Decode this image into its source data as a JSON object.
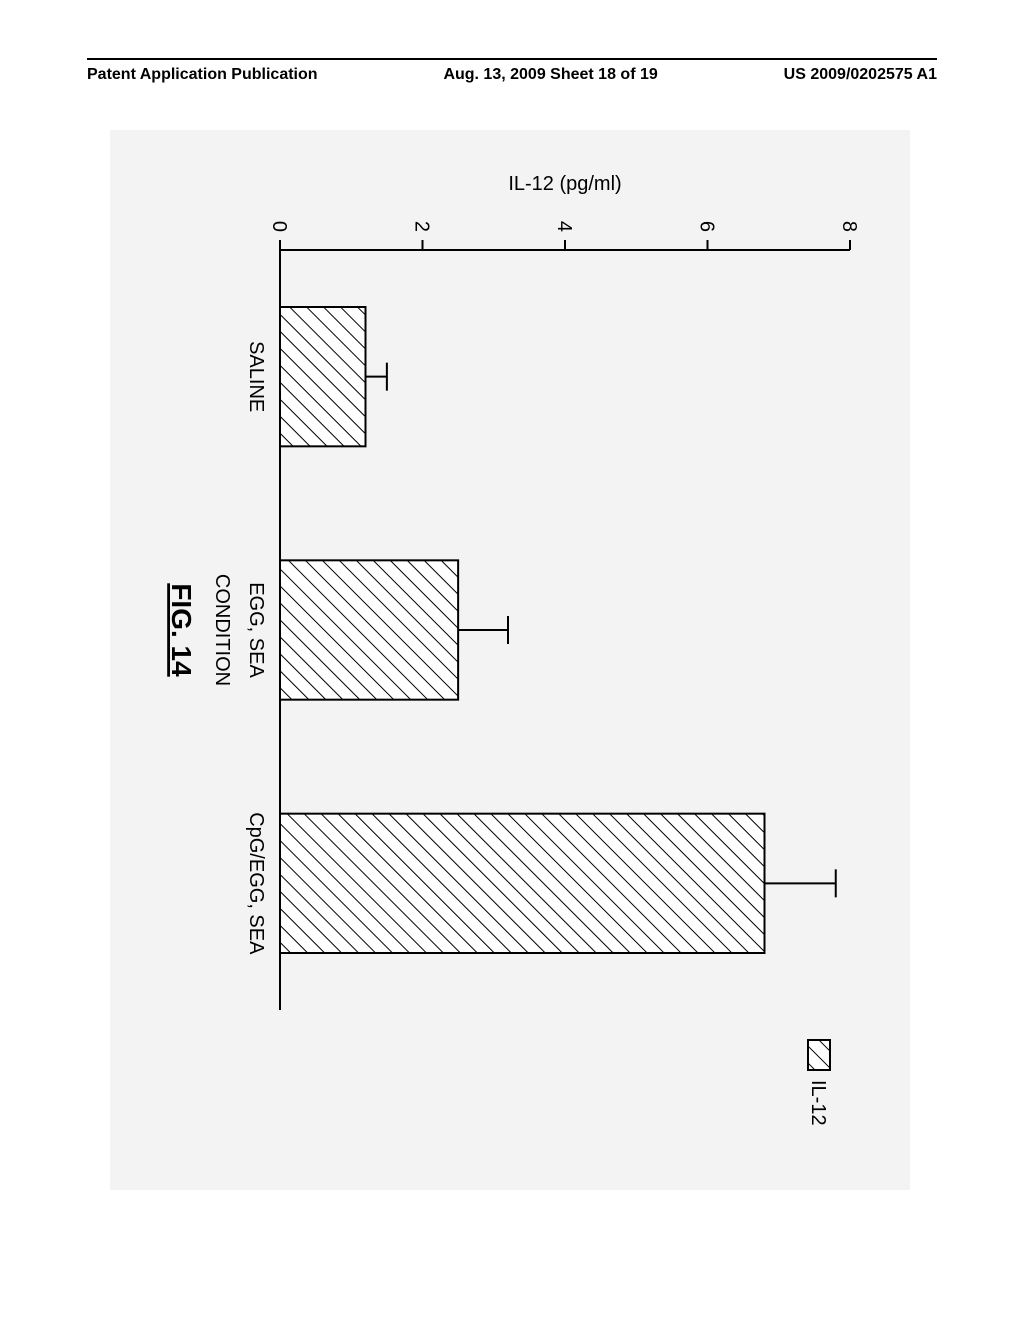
{
  "header": {
    "left": "Patent Application Publication",
    "center": "Aug. 13, 2009  Sheet 18 of 19",
    "right": "US 2009/0202575 A1"
  },
  "chart": {
    "type": "bar",
    "title": "",
    "x_label": "CONDITION",
    "y_label": "IL-12 (pg/ml)",
    "figure_label": "FIG. 14",
    "categories": [
      "SALINE",
      "EGG, SEA",
      "CpG/EGG, SEA"
    ],
    "values": [
      1.2,
      2.5,
      6.8
    ],
    "errors": [
      0.3,
      0.7,
      1.0
    ],
    "bar_colors": [
      "#ffffff",
      "#ffffff",
      "#ffffff"
    ],
    "hatch_color": "#000000",
    "ylim": [
      0,
      8
    ],
    "ytick_step": 2,
    "yticks": [
      0,
      2,
      4,
      6,
      8
    ],
    "background_color": "#f3f3f3",
    "axis_color": "#000000",
    "bar_border_color": "#000000",
    "error_bar_color": "#000000",
    "label_fontsize": 20,
    "tick_fontsize": 20,
    "fig_label_fontsize": 28,
    "legend": {
      "label": "IL-12",
      "position": "right"
    },
    "bar_width": 0.55,
    "line_width": 2,
    "inner_width": 760,
    "inner_height": 540
  }
}
